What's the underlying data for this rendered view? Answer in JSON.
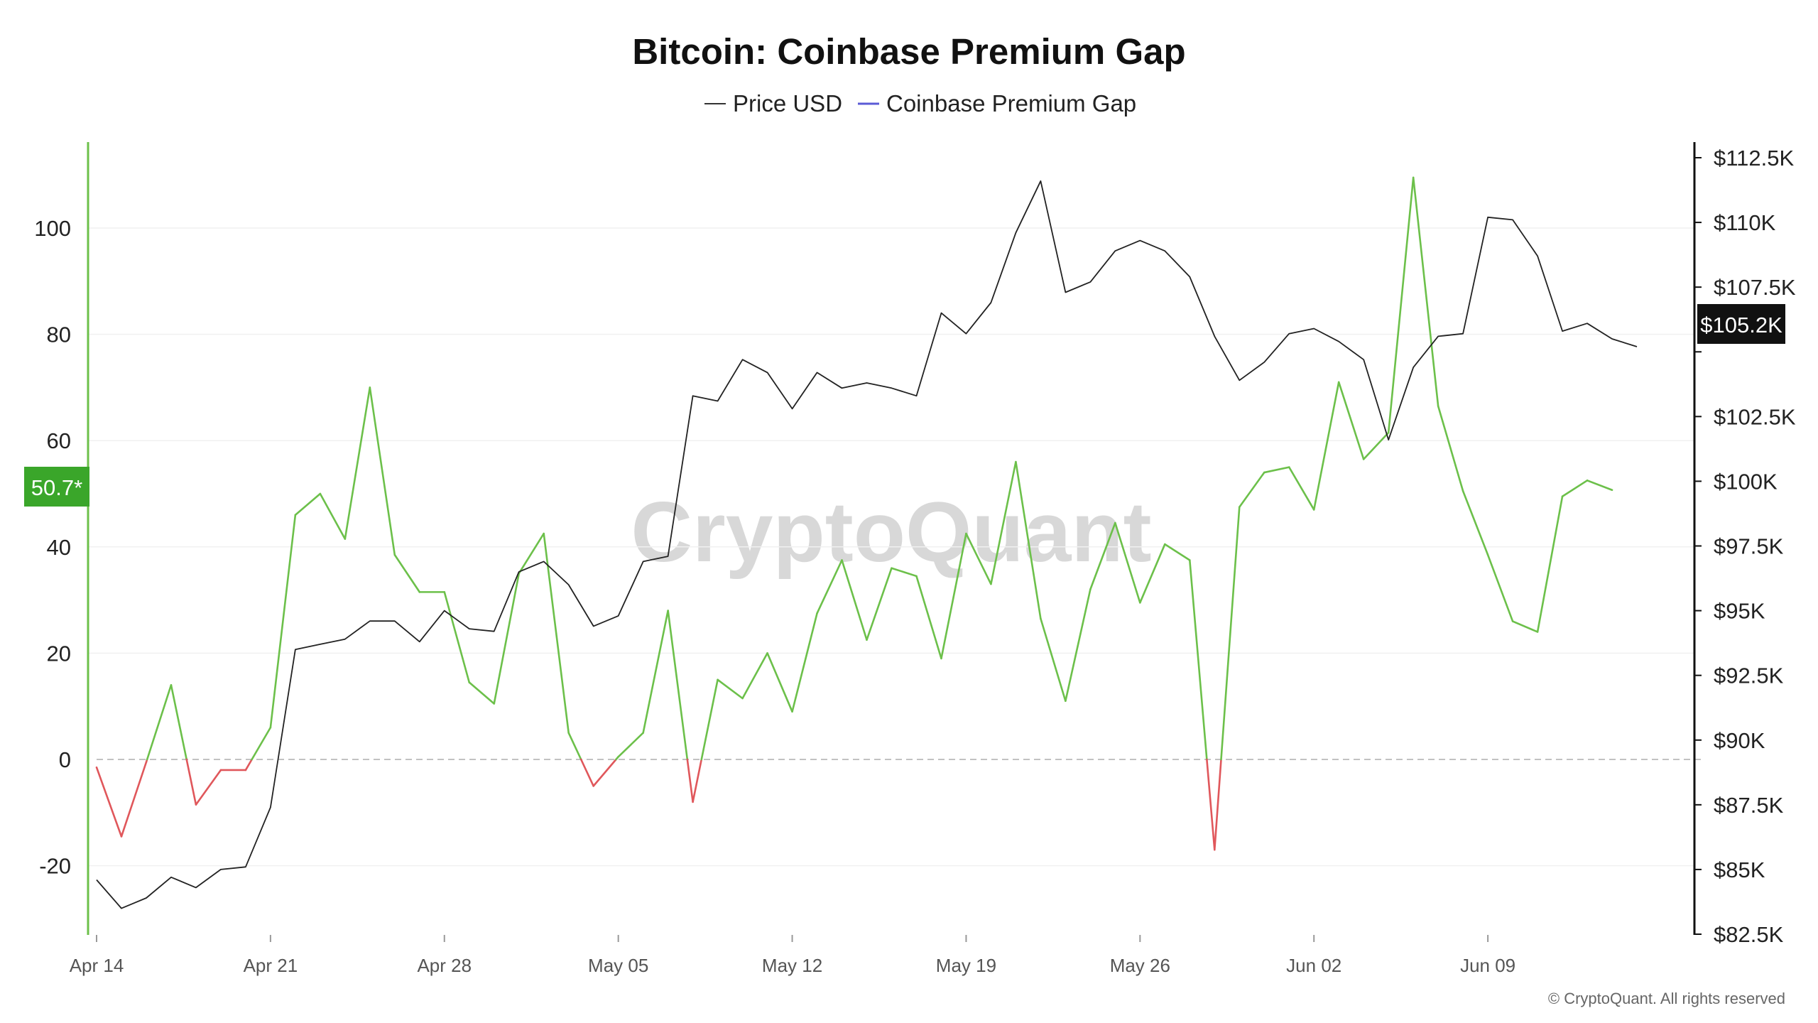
{
  "chart_data": {
    "type": "line",
    "title": "Bitcoin: Coinbase Premium Gap",
    "watermark": "CryptoQuant",
    "copyright": "© CryptoQuant. All rights reserved",
    "legend": {
      "placement": "top-center",
      "items": [
        {
          "name": "Price USD",
          "color": "#333333"
        },
        {
          "name": "Coinbase Premium Gap",
          "color": "#5b5bd6"
        }
      ]
    },
    "colors": {
      "positive": "#6cc04a",
      "negative": "#e0575b",
      "price": "#222222",
      "left_axis": "#6cc04a",
      "badge_left": "#3aa62a",
      "badge_right": "#111111"
    },
    "left_axis": {
      "ylim": [
        -34,
        116
      ],
      "ticks": [
        -20,
        0,
        20,
        40,
        60,
        80,
        100
      ],
      "tick_labels": [
        "-20",
        "0",
        "20",
        "40",
        "60",
        "80",
        "100"
      ]
    },
    "right_axis": {
      "ylim": [
        82.5,
        112.5
      ],
      "ticks": [
        82.5,
        85,
        87.5,
        90,
        92.5,
        95,
        97.5,
        100,
        102.5,
        105,
        107.5,
        110,
        112.5
      ],
      "tick_labels": [
        "$82.5K",
        "$85K",
        "$87.5K",
        "$90K",
        "$92.5K",
        "$95K",
        "$97.5K",
        "$100K",
        "$102.5K",
        "",
        "$107.5K",
        "$110K",
        "$112.5K"
      ]
    },
    "x_ticks": [
      {
        "label": "Apr 14",
        "date": "2025-04-14"
      },
      {
        "label": "Apr 21",
        "date": "2025-04-21"
      },
      {
        "label": "Apr 28",
        "date": "2025-04-28"
      },
      {
        "label": "May 05",
        "date": "2025-05-05"
      },
      {
        "label": "May 12",
        "date": "2025-05-12"
      },
      {
        "label": "May 19",
        "date": "2025-05-19"
      },
      {
        "label": "May 26",
        "date": "2025-05-26"
      },
      {
        "label": "Jun 02",
        "date": "2025-06-02"
      },
      {
        "label": "Jun 09",
        "date": "2025-06-09"
      }
    ],
    "badges": {
      "left": "50.7*",
      "right": "$105.2K"
    },
    "grid": true,
    "zero_line": "dashed",
    "x": [
      "2025-04-14",
      "2025-04-15",
      "2025-04-16",
      "2025-04-17",
      "2025-04-18",
      "2025-04-19",
      "2025-04-20",
      "2025-04-21",
      "2025-04-22",
      "2025-04-23",
      "2025-04-24",
      "2025-04-25",
      "2025-04-26",
      "2025-04-27",
      "2025-04-28",
      "2025-04-29",
      "2025-04-30",
      "2025-05-01",
      "2025-05-02",
      "2025-05-03",
      "2025-05-04",
      "2025-05-05",
      "2025-05-06",
      "2025-05-07",
      "2025-05-08",
      "2025-05-09",
      "2025-05-10",
      "2025-05-11",
      "2025-05-12",
      "2025-05-13",
      "2025-05-14",
      "2025-05-15",
      "2025-05-16",
      "2025-05-17",
      "2025-05-18",
      "2025-05-19",
      "2025-05-20",
      "2025-05-21",
      "2025-05-22",
      "2025-05-23",
      "2025-05-24",
      "2025-05-25",
      "2025-05-26",
      "2025-05-27",
      "2025-05-28",
      "2025-05-29",
      "2025-05-30",
      "2025-05-31",
      "2025-06-01",
      "2025-06-02",
      "2025-06-03",
      "2025-06-04",
      "2025-06-05",
      "2025-06-06",
      "2025-06-07",
      "2025-06-08",
      "2025-06-09",
      "2025-06-10",
      "2025-06-11",
      "2025-06-12",
      "2025-06-13",
      "2025-06-14",
      "2025-06-15",
      "2025-06-16"
    ],
    "series": [
      {
        "name": "Coinbase Premium Gap",
        "axis": "left",
        "values": [
          -1.5,
          -14.5,
          -0.5,
          14,
          -8.5,
          -2,
          -2,
          6,
          46,
          50,
          41.5,
          70,
          38.5,
          31.5,
          31.5,
          14.5,
          10.5,
          35,
          42.5,
          5,
          -5,
          0.5,
          5,
          28,
          -8,
          15,
          11.5,
          20,
          9,
          27.5,
          37.5,
          22.5,
          36,
          34.5,
          19,
          42.5,
          33,
          56,
          26.5,
          11,
          32,
          44.5,
          29.5,
          40.5,
          37.5,
          -17,
          47.5,
          54,
          55,
          47,
          71,
          56.5,
          61.5,
          109.5,
          66.5,
          50.5,
          38.5,
          26,
          24,
          49.5,
          52.5,
          50.7,
          null,
          null
        ]
      },
      {
        "name": "Price USD",
        "axis": "right",
        "values": [
          84.6,
          83.5,
          83.9,
          84.7,
          84.3,
          85.0,
          85.1,
          87.4,
          93.5,
          93.7,
          93.9,
          94.6,
          94.6,
          93.8,
          95.0,
          94.3,
          94.2,
          96.5,
          96.9,
          96.0,
          94.4,
          94.8,
          96.9,
          97.1,
          103.3,
          103.1,
          104.7,
          104.2,
          102.8,
          104.2,
          103.6,
          103.8,
          103.6,
          103.3,
          106.5,
          105.7,
          106.9,
          109.6,
          111.6,
          107.3,
          107.7,
          108.9,
          109.3,
          108.9,
          107.9,
          105.6,
          103.9,
          104.6,
          105.7,
          105.9,
          105.4,
          104.7,
          101.6,
          104.4,
          105.6,
          105.7,
          110.2,
          110.1,
          108.7,
          105.8,
          106.1,
          105.5,
          105.2,
          null
        ]
      }
    ]
  }
}
